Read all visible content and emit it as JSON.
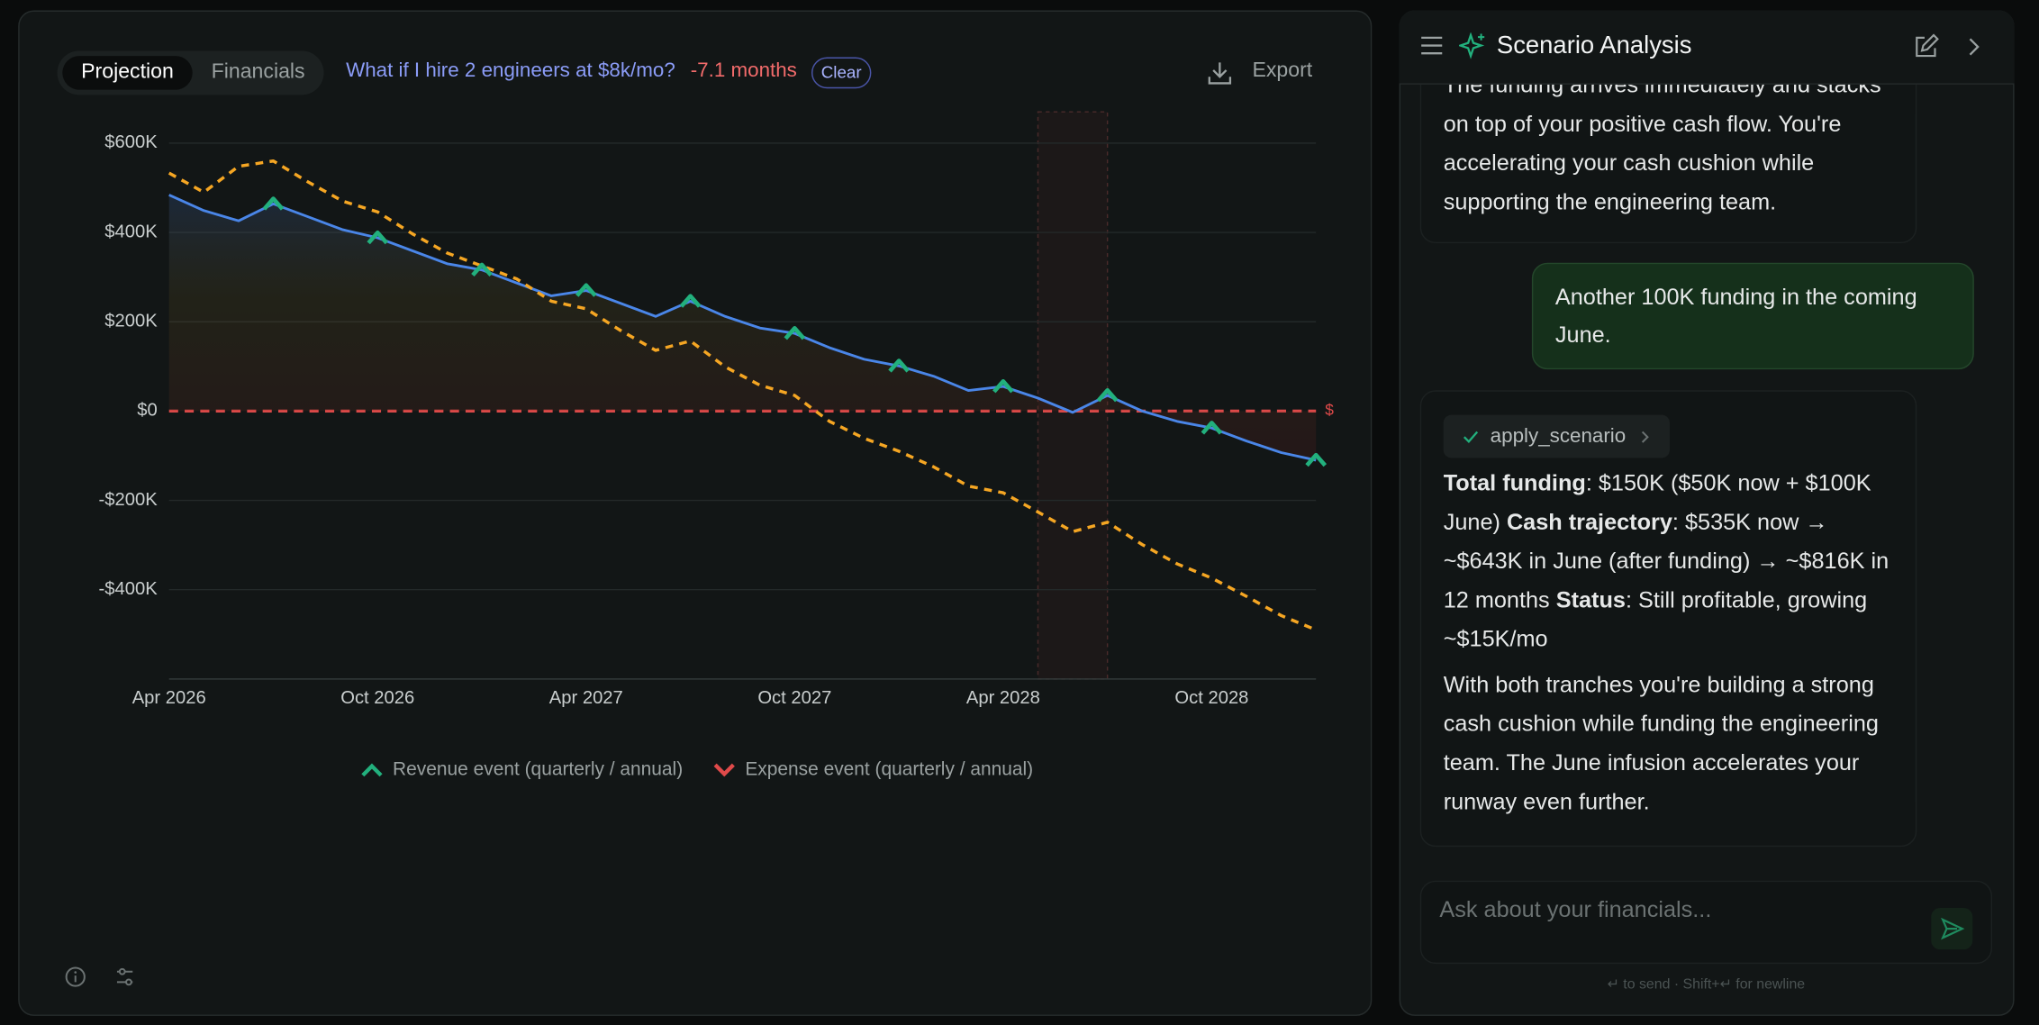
{
  "toolbar": {
    "tabs": [
      "Projection",
      "Financials"
    ],
    "scenario_query": "What if I hire 2 engineers at $8k/mo?",
    "scenario_delta": "-7.1 months",
    "clear": "Clear",
    "export": "Export"
  },
  "chart_data": {
    "type": "line",
    "x": [
      "2026-04",
      "2026-05",
      "2026-06",
      "2026-07",
      "2026-08",
      "2026-09",
      "2026-10",
      "2026-11",
      "2026-12",
      "2027-01",
      "2027-02",
      "2027-03",
      "2027-04",
      "2027-05",
      "2027-06",
      "2027-07",
      "2027-08",
      "2027-09",
      "2027-10",
      "2027-11",
      "2027-12",
      "2028-01",
      "2028-02",
      "2028-03",
      "2028-04",
      "2028-05",
      "2028-06",
      "2028-07",
      "2028-08",
      "2028-09",
      "2028-10",
      "2028-11",
      "2028-12",
      "2029-01"
    ],
    "series": [
      {
        "color": "#4a86e8",
        "style": "solid",
        "area": true,
        "values": [
          484000,
          449000,
          426000,
          464000,
          435000,
          406000,
          388000,
          359000,
          330000,
          316000,
          287000,
          258000,
          270000,
          241000,
          212000,
          246000,
          212000,
          186000,
          174000,
          142000,
          116000,
          101000,
          78000,
          46000,
          55000,
          29000,
          -3000,
          35000,
          0,
          -23000,
          -38000,
          -67000,
          -93000,
          -110000
        ]
      },
      {
        "color": "#f5a623",
        "style": "dashed",
        "area": false,
        "values": [
          533000,
          490000,
          548000,
          560000,
          513000,
          470000,
          446000,
          397000,
          354000,
          325000,
          296000,
          246000,
          229000,
          180000,
          136000,
          157000,
          99000,
          58000,
          35000,
          -23000,
          -61000,
          -90000,
          -125000,
          -168000,
          -183000,
          -226000,
          -270000,
          -249000,
          -299000,
          -342000,
          -374000,
          -415000,
          -458000,
          -490000
        ]
      }
    ],
    "revenue_events": {
      "color": "#22b07d",
      "x": [
        "2026-07",
        "2026-10",
        "2027-01",
        "2027-04",
        "2027-07",
        "2027-10",
        "2028-01",
        "2028-04",
        "2028-07",
        "2028-10",
        "2029-01"
      ],
      "values": [
        464000,
        388000,
        316000,
        270000,
        246000,
        174000,
        101000,
        55000,
        35000,
        -38000,
        -110000
      ]
    },
    "expense_event_color": "#e04a4a",
    "highlight": [
      "2028-05",
      "2028-07"
    ],
    "xlim": [
      "2026-04",
      "2029-01"
    ],
    "xticks": [
      {
        "value": "2026-04",
        "label": "Apr 2026"
      },
      {
        "value": "2026-10",
        "label": "Oct 2026"
      },
      {
        "value": "2027-04",
        "label": "Apr 2027"
      },
      {
        "value": "2027-10",
        "label": "Oct 2027"
      },
      {
        "value": "2028-04",
        "label": "Apr 2028"
      },
      {
        "value": "2028-10",
        "label": "Oct 2028"
      }
    ],
    "ylim": [
      -600000,
      670000
    ],
    "yticks": [
      {
        "value": 600000,
        "label": "$600K"
      },
      {
        "value": 400000,
        "label": "$400K"
      },
      {
        "value": 200000,
        "label": "$200K"
      },
      {
        "value": 0,
        "label": "$0"
      },
      {
        "value": -200000,
        "label": "-$200K"
      },
      {
        "value": -400000,
        "label": "-$400K"
      }
    ],
    "zero_line_color": "#e04a4a",
    "zero_line_label": "$",
    "grid": true,
    "legend": [
      "Revenue event (quarterly / annual)",
      "Expense event (quarterly / annual)"
    ]
  },
  "chat": {
    "title": "Scenario Analysis",
    "messages": [
      {
        "role": "assistant",
        "paragraphs": [
          [
            {
              "text": "The funding arrives immediately and stacks on top of your positive cash flow. You're accelerating your cash cushion while supporting the engineering team."
            }
          ]
        ]
      },
      {
        "role": "user",
        "text": "Another 100K funding in the coming June."
      },
      {
        "role": "assistant",
        "tool": "apply_scenario",
        "paragraphs": [
          [
            {
              "text": "Total funding",
              "bold": true
            },
            {
              "text": ": $150K ($50K now + $100K June) "
            },
            {
              "text": "Cash trajectory",
              "bold": true
            },
            {
              "text": ": $535K now → ~$643K in June (after funding) → ~$816K in 12 months "
            },
            {
              "text": "Status",
              "bold": true
            },
            {
              "text": ": Still profitable, growing ~$15K/mo"
            }
          ],
          [
            {
              "text": "With both tranches you're building a strong cash cushion while funding the engineering team. The June infusion accelerates your runway even further."
            }
          ]
        ]
      }
    ],
    "input_placeholder": "Ask about your financials...",
    "hint": "↵ to send · Shift+↵ for newline"
  }
}
